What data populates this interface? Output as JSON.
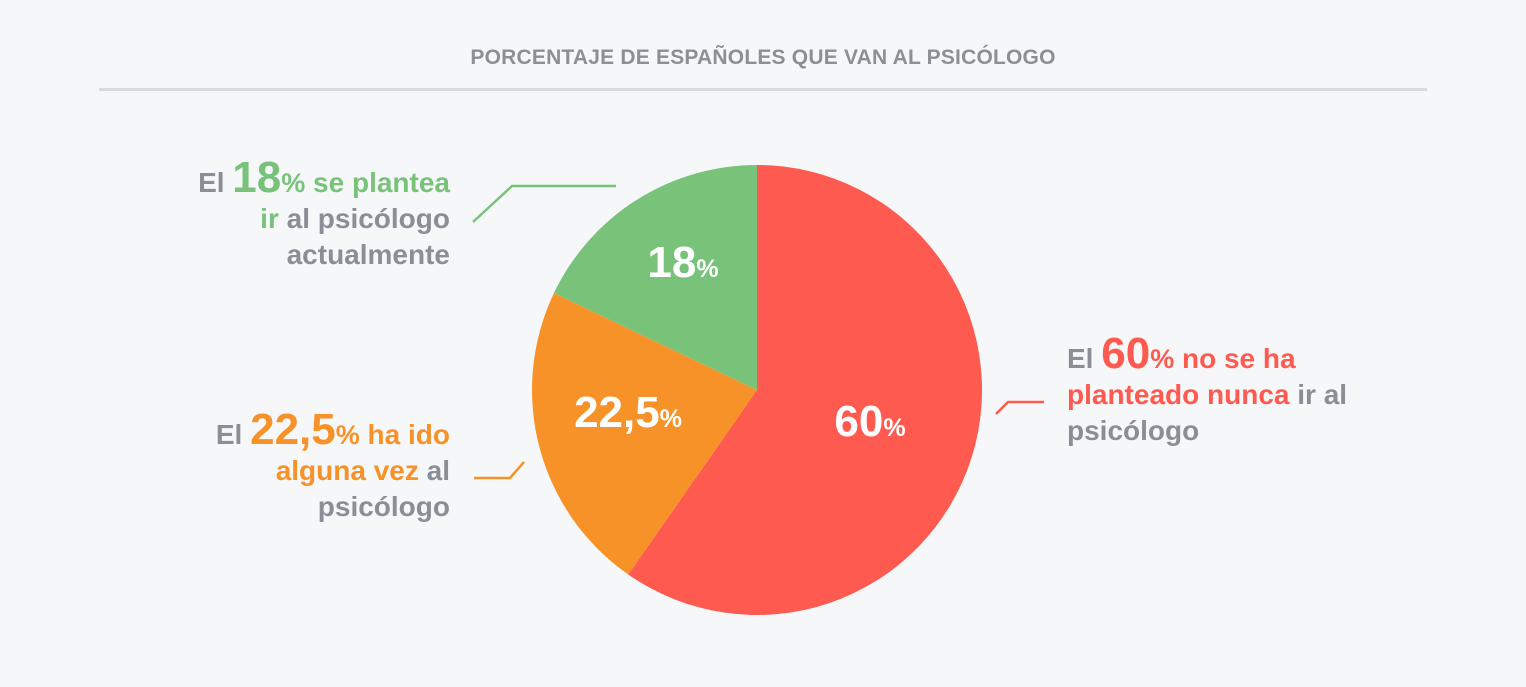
{
  "header": {
    "title": "PORCENTAJE DE ESPAÑOLES QUE VAN AL PSICÓLOGO"
  },
  "colors": {
    "red": "#ff5a4f",
    "orange": "#f79228",
    "green": "#78c27a",
    "gray_text": "#8a8e96",
    "divider": "#d7dbe0",
    "background": "#f6f7f9"
  },
  "chart_data": {
    "type": "pie",
    "title": "PORCENTAJE DE ESPAÑOLES QUE VAN AL PSICÓLOGO",
    "start_angle": "12 o'clock",
    "direction": "clockwise",
    "slices": [
      {
        "key": "red",
        "value": 60,
        "value_label": "60",
        "unit": "%",
        "color": "#ff5a4f"
      },
      {
        "key": "orange",
        "value": 22.5,
        "value_label": "22,5",
        "unit": "%",
        "color": "#f79228"
      },
      {
        "key": "green",
        "value": 18,
        "value_label": "18",
        "unit": "%",
        "color": "#78c27a"
      }
    ]
  },
  "annotations": {
    "green": {
      "prefix": "El ",
      "number": "18",
      "pct": "%",
      "highlight_1": " se plantea",
      "highlight_2": "ir",
      "rest_1": " al psicólogo",
      "rest_2": "actualmente"
    },
    "orange": {
      "prefix": "El ",
      "number": "22,5",
      "pct": "%",
      "highlight_1": " ha ido",
      "highlight_2": "alguna vez",
      "rest_1": " al",
      "rest_2": "psicólogo"
    },
    "red": {
      "prefix": "El ",
      "number": "60",
      "pct": "%",
      "highlight_1": " no se ha",
      "highlight_2": "planteado nunca",
      "rest_1": " ir al",
      "rest_2": "psicólogo"
    }
  }
}
